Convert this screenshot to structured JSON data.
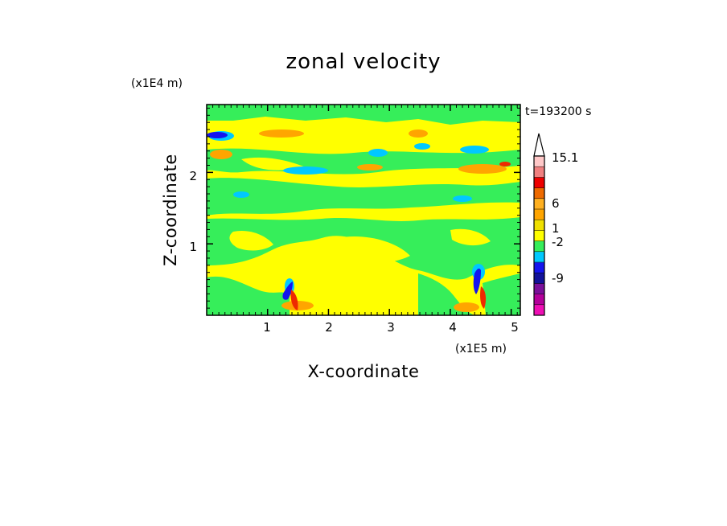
{
  "chart_data": {
    "type": "heatmap",
    "title": "zonal velocity",
    "xlabel": "X-coordinate",
    "ylabel": "Z-coordinate",
    "x_scale_label": "(x1E5 m)",
    "y_scale_label": "(x1E4 m)",
    "time_label": "t=193200 s",
    "xlim": [
      0,
      5.15
    ],
    "ylim": [
      0,
      2.95
    ],
    "x_ticks": [
      "1",
      "2",
      "3",
      "4",
      "5"
    ],
    "y_ticks": [
      "1",
      "2"
    ],
    "colorbar": {
      "labels": [
        "15.1",
        "6",
        "1",
        "-2",
        "-9"
      ],
      "bands": [
        {
          "lo": -15,
          "hi": -12,
          "color": "#ee0fb4"
        },
        {
          "lo": -12,
          "hi": -9,
          "color": "#b3009a"
        },
        {
          "lo": -9,
          "hi": -6,
          "color": "#7a0f9a"
        },
        {
          "lo": -6,
          "hi": -4,
          "color": "#12129a"
        },
        {
          "lo": -4,
          "hi": -2,
          "color": "#1414ee"
        },
        {
          "lo": -2,
          "hi": -1,
          "color": "#00c8ff"
        },
        {
          "lo": -1,
          "hi": 0,
          "color": "#36ee5a"
        },
        {
          "lo": 0,
          "hi": 0.5,
          "color": "#ffff00"
        },
        {
          "lo": 0.5,
          "hi": 1,
          "color": "#f0e000"
        },
        {
          "lo": 1,
          "hi": 2,
          "color": "#ffa500"
        },
        {
          "lo": 2,
          "hi": 3,
          "color": "#ffb020"
        },
        {
          "lo": 3,
          "hi": 6,
          "color": "#ee6a00"
        },
        {
          "lo": 6,
          "hi": 9,
          "color": "#ee0000"
        },
        {
          "lo": 9,
          "hi": 12,
          "color": "#f08080"
        },
        {
          "lo": 12,
          "hi": 15.1,
          "color": "#ffc8c8"
        }
      ]
    },
    "field_colors": {
      "base": "#ffff00",
      "green": "#36ee5a",
      "cyan": "#00c8ff",
      "blue": "#1414ee",
      "orange": "#ffa500",
      "red": "#ee2a00"
    }
  }
}
